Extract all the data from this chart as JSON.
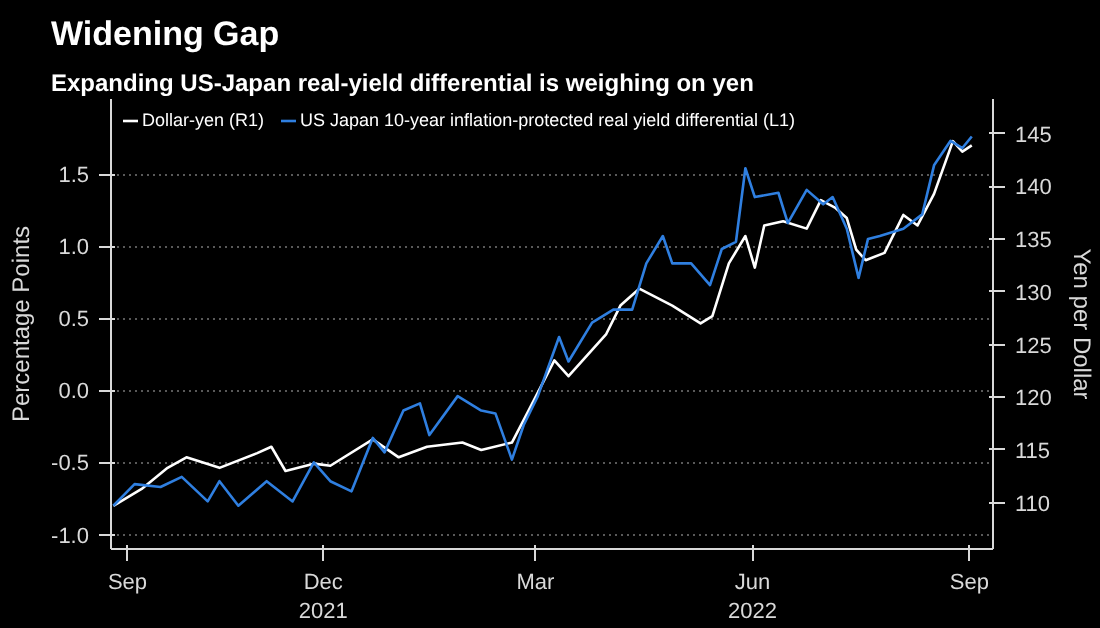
{
  "chart_data": {
    "type": "line",
    "title": "Widening Gap",
    "subtitle": "Expanding US-Japan real-yield differential is weighing on yen",
    "ylabel": "Percentage Points",
    "y2label": "Yen per Dollar",
    "xlim": [
      "2021-09-17",
      "2022-09-26"
    ],
    "xticks": [
      {
        "value": "2021-09-24",
        "label": "Sep"
      },
      {
        "value": "2021-12-16",
        "label": "Dec\n2021"
      },
      {
        "value": "2022-03-16",
        "label": "Mar"
      },
      {
        "value": "2022-06-16",
        "label": "Jun\n2022"
      },
      {
        "value": "2022-09-16",
        "label": "Sep"
      }
    ],
    "ylim": [
      -1.1,
      2.02
    ],
    "yticks": [
      {
        "value": -1,
        "label": "-1.0"
      },
      {
        "value": -0.5,
        "label": "-0.5"
      },
      {
        "value": 0,
        "label": "0.0"
      },
      {
        "value": 0.5,
        "label": "0.5"
      },
      {
        "value": 1,
        "label": "1.0"
      },
      {
        "value": 1.5,
        "label": "1.5"
      }
    ],
    "y2lim": [
      105.6,
      148.3
    ],
    "y2ticks": [
      110,
      115,
      120,
      125,
      130,
      135,
      140,
      145
    ],
    "grid": "y",
    "legend": "top left",
    "line_style": "solid",
    "series": [
      {
        "name": "Dollar-yen (R1)",
        "color": "#ffffff",
        "axis": "y2",
        "x": [
          "2021-09-18",
          "2021-09-30",
          "2021-10-11",
          "2021-10-19",
          "2021-11-02",
          "2021-11-18",
          "2021-11-24",
          "2021-11-30",
          "2021-12-12",
          "2021-12-19",
          "2022-01-06",
          "2022-01-17",
          "2022-01-29",
          "2022-02-13",
          "2022-02-21",
          "2022-03-06",
          "2022-03-13",
          "2022-03-24",
          "2022-03-30",
          "2022-04-15",
          "2022-04-21",
          "2022-04-29",
          "2022-05-13",
          "2022-05-25",
          "2022-05-30",
          "2022-06-06",
          "2022-06-13",
          "2022-06-17",
          "2022-06-21",
          "2022-06-29",
          "2022-07-09",
          "2022-07-15",
          "2022-07-21",
          "2022-07-26",
          "2022-07-30",
          "2022-08-03",
          "2022-08-11",
          "2022-08-19",
          "2022-08-25",
          "2022-09-01",
          "2022-09-09",
          "2022-09-13",
          "2022-09-17"
        ],
        "values": [
          109.7,
          111.3,
          113.3,
          114.3,
          113.3,
          114.7,
          115.3,
          113.0,
          113.7,
          113.5,
          116.0,
          114.3,
          115.3,
          115.7,
          115.0,
          115.7,
          118.7,
          123.5,
          122.0,
          126.0,
          128.7,
          130.3,
          128.7,
          127.0,
          127.7,
          132.7,
          135.3,
          132.3,
          136.3,
          136.7,
          136.0,
          138.7,
          138.0,
          137.0,
          134.0,
          133.0,
          133.7,
          137.3,
          136.3,
          139.3,
          144.3,
          143.3,
          143.9
        ]
      },
      {
        "name": "US Japan 10-year inflation-protected real yield differential (L1)",
        "color": "#2f7fe0",
        "x": [
          "2021-09-18",
          "2021-09-27",
          "2021-10-08",
          "2021-10-17",
          "2021-10-28",
          "2021-11-02",
          "2021-11-10",
          "2021-11-22",
          "2021-12-03",
          "2021-12-12",
          "2021-12-19",
          "2021-12-28",
          "2022-01-06",
          "2022-01-11",
          "2022-01-19",
          "2022-01-26",
          "2022-01-30",
          "2022-02-11",
          "2022-02-21",
          "2022-02-27",
          "2022-03-06",
          "2022-03-11",
          "2022-03-17",
          "2022-03-26",
          "2022-03-30",
          "2022-04-09",
          "2022-04-18",
          "2022-04-26",
          "2022-05-02",
          "2022-05-09",
          "2022-05-13",
          "2022-05-21",
          "2022-05-29",
          "2022-06-03",
          "2022-06-09",
          "2022-06-13",
          "2022-06-17",
          "2022-06-27",
          "2022-07-01",
          "2022-07-09",
          "2022-07-16",
          "2022-07-20",
          "2022-07-26",
          "2022-07-31",
          "2022-08-04",
          "2022-08-09",
          "2022-08-19",
          "2022-08-27",
          "2022-09-01",
          "2022-09-08",
          "2022-09-13",
          "2022-09-17"
        ],
        "values": [
          -0.8,
          -0.65,
          -0.67,
          -0.6,
          -0.77,
          -0.63,
          -0.8,
          -0.63,
          -0.77,
          -0.5,
          -0.63,
          -0.7,
          -0.33,
          -0.43,
          -0.14,
          -0.09,
          -0.31,
          -0.04,
          -0.14,
          -0.16,
          -0.48,
          -0.24,
          -0.04,
          0.37,
          0.2,
          0.47,
          0.56,
          0.56,
          0.88,
          1.07,
          0.88,
          0.88,
          0.73,
          0.98,
          1.03,
          1.54,
          1.34,
          1.37,
          1.16,
          1.39,
          1.29,
          1.34,
          1.12,
          0.78,
          1.05,
          1.07,
          1.12,
          1.22,
          1.56,
          1.73,
          1.68,
          1.76
        ]
      }
    ]
  }
}
